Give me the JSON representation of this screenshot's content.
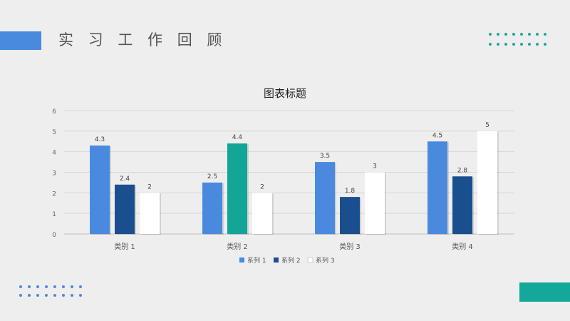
{
  "slide": {
    "title": "实 习 工 作 回 顾"
  },
  "colors": {
    "accent_blue": "#4a8ade",
    "accent_teal": "#14a89a"
  },
  "chart_data": {
    "type": "bar",
    "title": "图表标题",
    "categories": [
      "类别 1",
      "类别 2",
      "类别 3",
      "类别 4"
    ],
    "series": [
      {
        "name": "系列 1",
        "values": [
          4.3,
          2.5,
          3.5,
          4.5
        ],
        "color": "#4a8ade"
      },
      {
        "name": "系列 2",
        "values": [
          2.4,
          4.4,
          1.8,
          2.8
        ],
        "color": "#1a4f8f"
      },
      {
        "name": "系列 3",
        "values": [
          2,
          2,
          3,
          5
        ],
        "color": "#ffffff"
      }
    ],
    "highlight": {
      "category_index": 1,
      "series_index": 1,
      "color": "#13a596"
    },
    "ylim": [
      0,
      6
    ],
    "yticks": [
      0,
      1,
      2,
      3,
      4,
      5,
      6
    ],
    "grid": true,
    "legend_position": "bottom",
    "xlabel": "",
    "ylabel": ""
  }
}
